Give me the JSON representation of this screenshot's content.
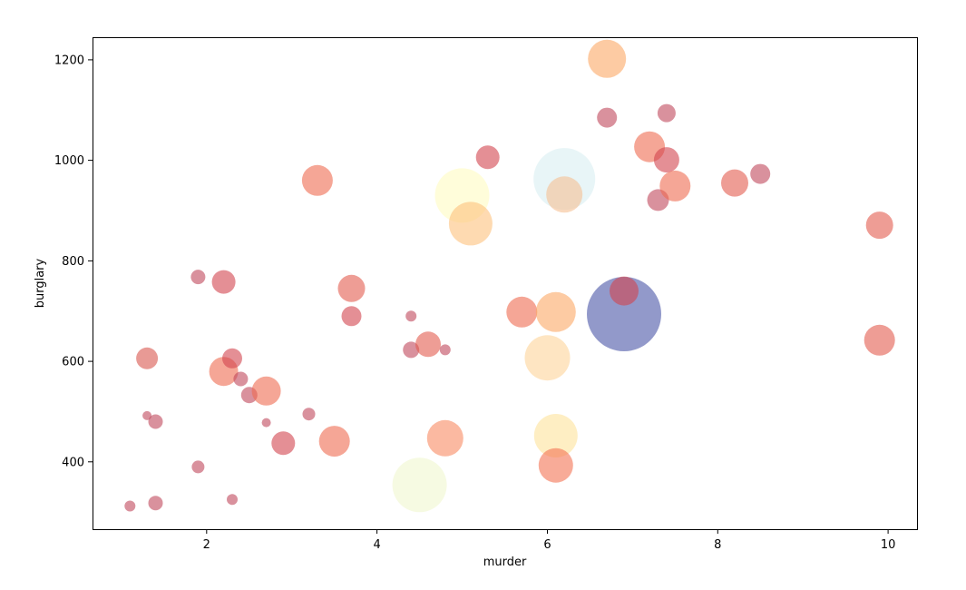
{
  "chart_data": {
    "type": "scatter",
    "title": "",
    "xlabel": "murder",
    "ylabel": "burglary",
    "xlim": [
      0.66,
      10.34
    ],
    "ylim": [
      266,
      1245
    ],
    "x_ticks": [
      2,
      4,
      6,
      8,
      10
    ],
    "y_ticks": [
      400,
      600,
      800,
      1000,
      1200
    ],
    "x_tick_labels": [
      "2",
      "4",
      "6",
      "8",
      "10"
    ],
    "y_tick_labels": [
      "400",
      "600",
      "800",
      "1000",
      "1200"
    ],
    "grid": false,
    "legend": "none",
    "points": [
      {
        "x": 1.1,
        "y": 312,
        "r": 6,
        "color": "#c0485b"
      },
      {
        "x": 1.3,
        "y": 492,
        "r": 5,
        "color": "#c0485b"
      },
      {
        "x": 1.3,
        "y": 606,
        "r": 12,
        "color": "#d8564f"
      },
      {
        "x": 1.4,
        "y": 318,
        "r": 8,
        "color": "#c0485b"
      },
      {
        "x": 1.4,
        "y": 480,
        "r": 8,
        "color": "#c0485b"
      },
      {
        "x": 1.9,
        "y": 390,
        "r": 7,
        "color": "#c0485b"
      },
      {
        "x": 1.9,
        "y": 768,
        "r": 8,
        "color": "#c0485b"
      },
      {
        "x": 2.2,
        "y": 758,
        "r": 13,
        "color": "#d2454e"
      },
      {
        "x": 2.2,
        "y": 580,
        "r": 16,
        "color": "#ee6a50"
      },
      {
        "x": 2.3,
        "y": 606,
        "r": 11,
        "color": "#d2454e"
      },
      {
        "x": 2.3,
        "y": 325,
        "r": 6,
        "color": "#c0485b"
      },
      {
        "x": 2.4,
        "y": 565,
        "r": 8,
        "color": "#c0485b"
      },
      {
        "x": 2.5,
        "y": 533,
        "r": 9,
        "color": "#c0485b"
      },
      {
        "x": 2.7,
        "y": 541,
        "r": 16,
        "color": "#ee6a50"
      },
      {
        "x": 2.7,
        "y": 478,
        "r": 5,
        "color": "#c0485b"
      },
      {
        "x": 2.9,
        "y": 437,
        "r": 13,
        "color": "#d2454e"
      },
      {
        "x": 3.2,
        "y": 495,
        "r": 7,
        "color": "#c0485b"
      },
      {
        "x": 3.3,
        "y": 960,
        "r": 17,
        "color": "#ee6a50"
      },
      {
        "x": 3.5,
        "y": 441,
        "r": 17,
        "color": "#ee6a50"
      },
      {
        "x": 3.7,
        "y": 745,
        "r": 15,
        "color": "#e25c4e"
      },
      {
        "x": 3.7,
        "y": 690,
        "r": 11,
        "color": "#d2454e"
      },
      {
        "x": 4.4,
        "y": 690,
        "r": 6,
        "color": "#c0485b"
      },
      {
        "x": 4.4,
        "y": 623,
        "r": 9,
        "color": "#c0485b"
      },
      {
        "x": 4.5,
        "y": 354,
        "r": 30,
        "color": "#f0f7cf"
      },
      {
        "x": 4.6,
        "y": 634,
        "r": 14,
        "color": "#e25c4e"
      },
      {
        "x": 4.8,
        "y": 623,
        "r": 6,
        "color": "#c0485b"
      },
      {
        "x": 4.8,
        "y": 447,
        "r": 20,
        "color": "#f88b62"
      },
      {
        "x": 5.0,
        "y": 930,
        "r": 30,
        "color": "#fffcc2"
      },
      {
        "x": 5.1,
        "y": 874,
        "r": 24,
        "color": "#fdc27d"
      },
      {
        "x": 5.3,
        "y": 1006,
        "r": 13,
        "color": "#d2454e"
      },
      {
        "x": 5.7,
        "y": 698,
        "r": 17,
        "color": "#ee6a50"
      },
      {
        "x": 6.0,
        "y": 607,
        "r": 25,
        "color": "#fdd399"
      },
      {
        "x": 6.1,
        "y": 698,
        "r": 22,
        "color": "#fca866"
      },
      {
        "x": 6.1,
        "y": 452,
        "r": 24,
        "color": "#fee29b"
      },
      {
        "x": 6.1,
        "y": 393,
        "r": 19,
        "color": "#f47354"
      },
      {
        "x": 6.2,
        "y": 963,
        "r": 34,
        "color": "#d8eef2"
      },
      {
        "x": 6.2,
        "y": 932,
        "r": 20,
        "color": "#f5bf92"
      },
      {
        "x": 6.7,
        "y": 1202,
        "r": 21,
        "color": "#fca866"
      },
      {
        "x": 6.7,
        "y": 1085,
        "r": 11,
        "color": "#c0485b"
      },
      {
        "x": 6.9,
        "y": 694,
        "r": 41,
        "color": "#4a55a6"
      },
      {
        "x": 6.9,
        "y": 740,
        "r": 16,
        "color": "#d2454e"
      },
      {
        "x": 7.2,
        "y": 1027,
        "r": 17,
        "color": "#ee6a50"
      },
      {
        "x": 7.3,
        "y": 921,
        "r": 12,
        "color": "#c0485b"
      },
      {
        "x": 7.4,
        "y": 1094,
        "r": 10,
        "color": "#c0485b"
      },
      {
        "x": 7.4,
        "y": 1001,
        "r": 14,
        "color": "#d2454e"
      },
      {
        "x": 7.5,
        "y": 949,
        "r": 17,
        "color": "#ee6a50"
      },
      {
        "x": 8.2,
        "y": 955,
        "r": 15,
        "color": "#e25c4e"
      },
      {
        "x": 8.5,
        "y": 973,
        "r": 11,
        "color": "#c0485b"
      },
      {
        "x": 9.9,
        "y": 871,
        "r": 15,
        "color": "#e25c4e"
      },
      {
        "x": 9.9,
        "y": 642,
        "r": 17,
        "color": "#e25c4e"
      }
    ]
  }
}
